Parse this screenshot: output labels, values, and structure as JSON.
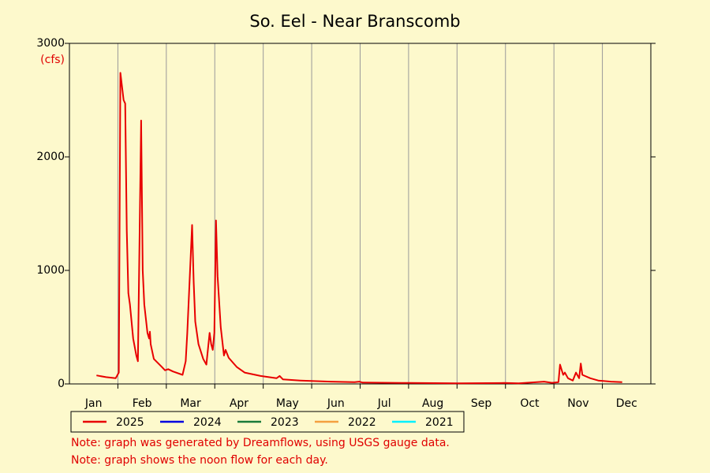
{
  "chart_data": {
    "type": "line",
    "title": "So. Eel - Near Branscomb",
    "y_label": "(cfs)",
    "categories": [
      "Jan",
      "Feb",
      "Mar",
      "Apr",
      "May",
      "Jun",
      "Jul",
      "Aug",
      "Sep",
      "Oct",
      "Nov",
      "Dec"
    ],
    "ylim": [
      0,
      3000
    ],
    "yticks": [
      0,
      1000,
      2000,
      3000
    ],
    "grid": true,
    "series": [
      {
        "name": "2025",
        "color": "#e80000",
        "x": [
          17,
          23,
          29,
          31,
          32,
          34,
          35,
          36,
          37,
          38,
          40,
          42,
          43,
          45,
          46,
          47,
          49,
          50,
          50.5,
          51,
          53,
          58,
          60,
          62,
          65,
          71,
          73,
          74,
          77,
          78,
          79,
          81,
          84,
          86,
          88,
          89,
          90,
          91,
          92,
          93,
          95,
          97,
          98,
          100,
          105,
          110,
          120,
          130,
          132,
          134,
          145,
          164,
          179,
          182,
          184,
          214,
          244,
          273,
          282,
          298,
          303,
          307,
          308,
          310,
          311,
          313,
          316,
          318,
          320,
          321,
          322,
          327,
          332,
          340,
          347
        ],
        "values": [
          75,
          60,
          50,
          100,
          2740,
          2500,
          2470,
          1350,
          800,
          700,
          400,
          250,
          200,
          2320,
          1000,
          700,
          450,
          400,
          460,
          350,
          220,
          150,
          120,
          130,
          110,
          80,
          200,
          450,
          1400,
          900,
          550,
          350,
          220,
          170,
          450,
          350,
          300,
          450,
          1440,
          950,
          500,
          250,
          300,
          230,
          150,
          100,
          70,
          50,
          70,
          40,
          30,
          20,
          15,
          20,
          12,
          8,
          5,
          8,
          5,
          20,
          10,
          15,
          170,
          80,
          100,
          50,
          30,
          100,
          50,
          180,
          80,
          50,
          30,
          20,
          15
        ]
      }
    ],
    "legend": [
      {
        "name": "2025",
        "color": "#e80000"
      },
      {
        "name": "2024",
        "color": "#0000e0"
      },
      {
        "name": "2023",
        "color": "#1a7a3a"
      },
      {
        "name": "2022",
        "color": "#f4a040"
      },
      {
        "name": "2021",
        "color": "#00f0ff"
      }
    ],
    "notes": [
      "Note: graph was generated by Dreamflows, using USGS gauge data.",
      "Note: graph shows the noon flow for each day."
    ]
  }
}
